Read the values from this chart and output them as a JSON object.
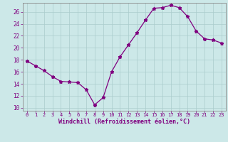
{
  "x": [
    0,
    1,
    2,
    3,
    4,
    5,
    6,
    7,
    8,
    9,
    10,
    11,
    12,
    13,
    14,
    15,
    16,
    17,
    18,
    19,
    20,
    21,
    22,
    23
  ],
  "y": [
    17.8,
    17.0,
    16.2,
    15.2,
    14.4,
    14.3,
    14.2,
    13.0,
    10.5,
    11.7,
    16.0,
    18.5,
    20.5,
    22.5,
    24.6,
    26.6,
    26.7,
    27.1,
    26.7,
    25.2,
    22.8,
    21.5,
    21.3,
    20.8
  ],
  "line_color": "#800080",
  "marker": "*",
  "marker_size": 3.5,
  "bg_color": "#cce8e8",
  "grid_color": "#aacccc",
  "xlabel": "Windchill (Refroidissement éolien,°C)",
  "xlim": [
    -0.5,
    23.5
  ],
  "ylim": [
    9.5,
    27.5
  ],
  "yticks": [
    10,
    12,
    14,
    16,
    18,
    20,
    22,
    24,
    26
  ],
  "xticks": [
    0,
    1,
    2,
    3,
    4,
    5,
    6,
    7,
    8,
    9,
    10,
    11,
    12,
    13,
    14,
    15,
    16,
    17,
    18,
    19,
    20,
    21,
    22,
    23
  ],
  "tick_color": "#800080",
  "label_fontsize": 5.0,
  "xlabel_fontsize": 6.0
}
